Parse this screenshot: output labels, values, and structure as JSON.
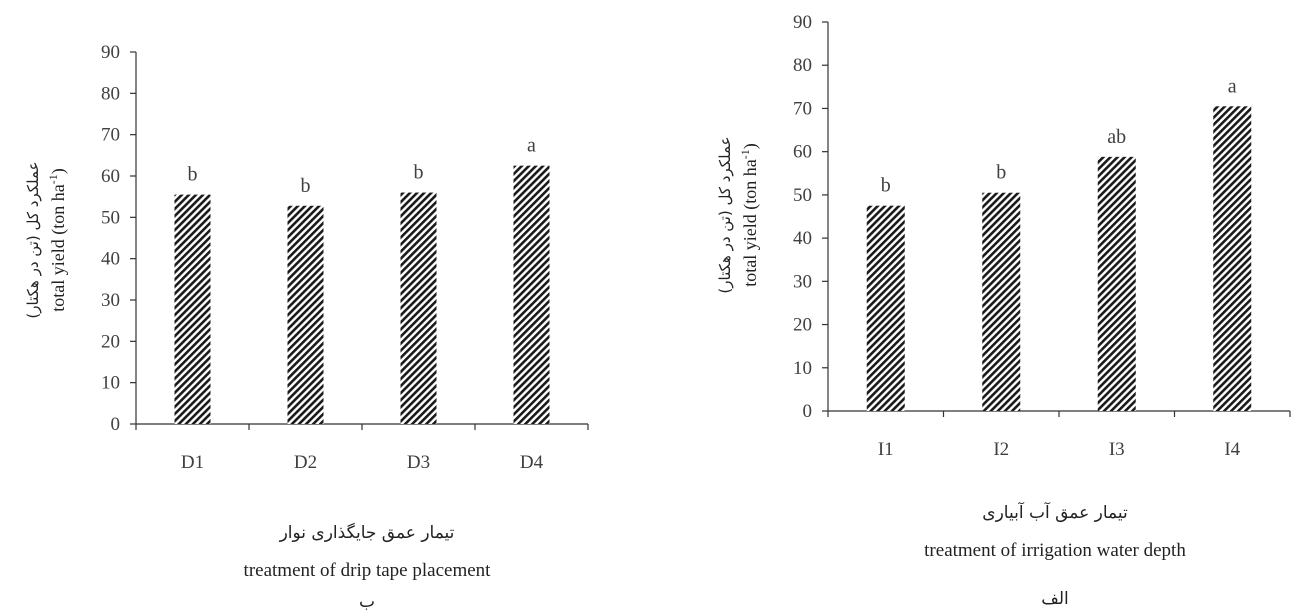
{
  "chart_data": [
    {
      "type": "bar",
      "panel_label": "ب",
      "categories": [
        "D1",
        "D2",
        "D3",
        "D4"
      ],
      "values": [
        55.5,
        52.8,
        56.0,
        62.5
      ],
      "letters": [
        "b",
        "b",
        "b",
        "a"
      ],
      "xlabel_fa": "تیمار عمق جایگذاری نوار",
      "xlabel_en": "treatment of drip tape placement",
      "ylabel_fa": "عملکرد کل (تن در هکتار)",
      "ylabel_en": "total yield (ton ha-1)",
      "ylim": [
        0,
        90
      ],
      "yticks": [
        0,
        10,
        20,
        30,
        40,
        50,
        60,
        70,
        80,
        90
      ],
      "grid": false,
      "legend": "none"
    },
    {
      "type": "bar",
      "panel_label": "الف",
      "categories": [
        "I1",
        "I2",
        "I3",
        "I4"
      ],
      "values": [
        47.5,
        50.5,
        58.8,
        70.5
      ],
      "letters": [
        "b",
        "b",
        "ab",
        "a"
      ],
      "xlabel_fa": "تیمار عمق آب آبیاری",
      "xlabel_en": "treatment of irrigation water depth",
      "ylabel_fa": "عملکرد کل (تن در هکتار)",
      "ylabel_en": "total yield (ton ha-1)",
      "ylim": [
        0,
        90
      ],
      "yticks": [
        0,
        10,
        20,
        30,
        40,
        50,
        60,
        70,
        80,
        90
      ],
      "grid": false,
      "legend": "none"
    }
  ],
  "style": {
    "bar_color": "#1a1a1a",
    "axis_color": "#333333"
  }
}
